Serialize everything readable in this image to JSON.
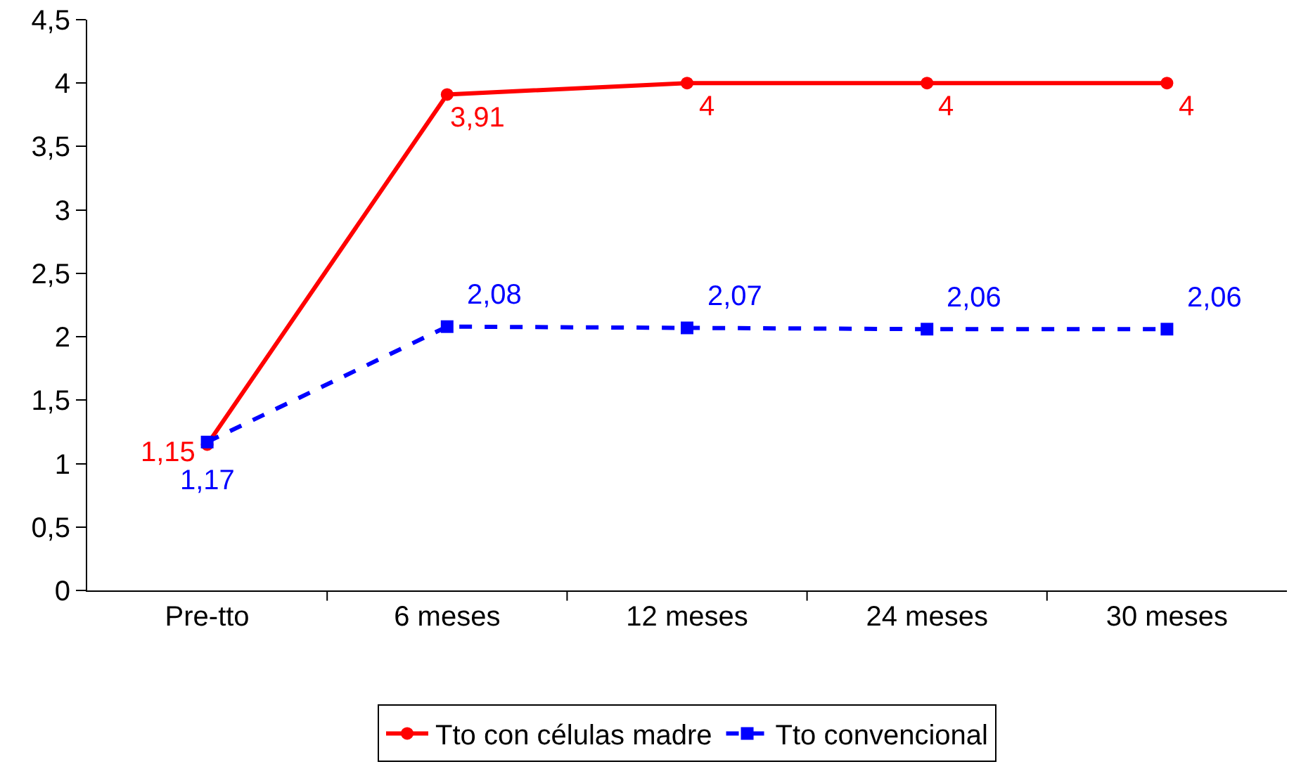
{
  "chart_data": {
    "type": "line",
    "categories": [
      "Pre-tto",
      "6 meses",
      "12 meses",
      "24 meses",
      "30 meses"
    ],
    "series": [
      {
        "name": "Tto con células madre",
        "color": "#ff0000",
        "marker": "circle",
        "line_style": "solid",
        "values": [
          1.15,
          3.91,
          4,
          4,
          4
        ],
        "value_labels": [
          "1,15",
          "3,91",
          "4",
          "4",
          "4"
        ]
      },
      {
        "name": "Tto convencional",
        "color": "#0000ff",
        "marker": "square",
        "line_style": "dashed",
        "values": [
          1.17,
          2.08,
          2.07,
          2.06,
          2.06
        ],
        "value_labels": [
          "1,17",
          "2,08",
          "2,07",
          "2,06",
          "2,06"
        ]
      }
    ],
    "ylim": [
      0,
      4.5
    ],
    "yticks": [
      0,
      {
        "value": 0.5,
        "label": "0,5"
      },
      1,
      {
        "value": 1.5,
        "label": "1,5"
      },
      2,
      {
        "value": 2.5,
        "label": "2,5"
      },
      3,
      {
        "value": 3.5,
        "label": "3,5"
      },
      4,
      {
        "value": 4.5,
        "label": "4,5"
      }
    ],
    "grid": false,
    "legend": "bottom"
  }
}
